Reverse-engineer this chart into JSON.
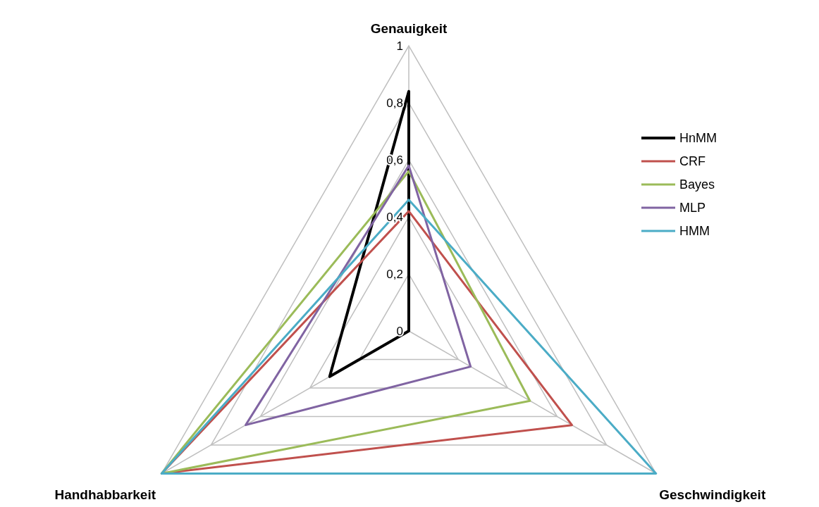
{
  "chart_data": {
    "type": "radar",
    "categories": [
      "Genauigkeit",
      "Geschwindigkeit",
      "Handhabbarkeit"
    ],
    "series": [
      {
        "name": "HnMM",
        "color": "#000000",
        "values": [
          0.84,
          0,
          0.32
        ]
      },
      {
        "name": "CRF",
        "color": "#c0504d",
        "values": [
          0.42,
          0.66,
          1
        ]
      },
      {
        "name": "Bayes",
        "color": "#9bbb59",
        "values": [
          0.56,
          0.49,
          1
        ]
      },
      {
        "name": "MLP",
        "color": "#8064a2",
        "values": [
          0.58,
          0.25,
          0.66
        ]
      },
      {
        "name": "HMM",
        "color": "#4bacc6",
        "values": [
          0.46,
          1,
          1
        ]
      }
    ],
    "ylim": [
      0,
      1
    ],
    "yticks": [
      0,
      {
        "value": 0.2,
        "label": "0,2"
      },
      {
        "value": 0.4,
        "label": "0,4"
      },
      {
        "value": 0.6,
        "label": "0,6"
      },
      {
        "value": 0.8,
        "label": "0,8"
      },
      1
    ],
    "grid": true,
    "legend": "right",
    "marker": "none"
  }
}
